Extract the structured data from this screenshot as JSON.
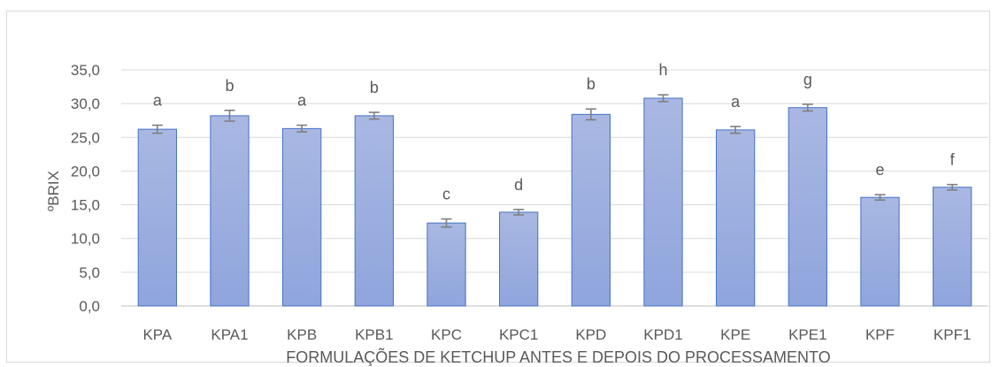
{
  "chart_data": {
    "type": "bar",
    "title": "",
    "xlabel": "FORMULAÇÕES DE KETCHUP ANTES E DEPOIS DO PROCESSAMENTO",
    "ylabel": "ºBRIX",
    "ylim": [
      0,
      35
    ],
    "yticks": [
      "0,0",
      "5,0",
      "10,0",
      "15,0",
      "20,0",
      "25,0",
      "30,0",
      "35,0"
    ],
    "grid": true,
    "legend": "none",
    "bar_color": "#8fa5dd",
    "bar_edge_color": "#4472c4",
    "errorbar_color": "#7f7f7f",
    "categories": [
      "KPA",
      "KPA1",
      "KPB",
      "KPB1",
      "KPC",
      "KPC1",
      "KPD",
      "KPD1",
      "KPE",
      "KPE1",
      "KPF",
      "KPF1"
    ],
    "values": [
      26.2,
      28.2,
      26.3,
      28.2,
      12.3,
      13.9,
      28.4,
      30.8,
      26.1,
      29.4,
      16.1,
      17.6
    ],
    "errors": [
      0.6,
      0.8,
      0.5,
      0.5,
      0.6,
      0.4,
      0.8,
      0.5,
      0.5,
      0.5,
      0.4,
      0.4
    ],
    "letters": [
      "a",
      "b",
      "a",
      "b",
      "c",
      "d",
      "b",
      "h",
      "a",
      "g",
      "e",
      "f"
    ]
  }
}
